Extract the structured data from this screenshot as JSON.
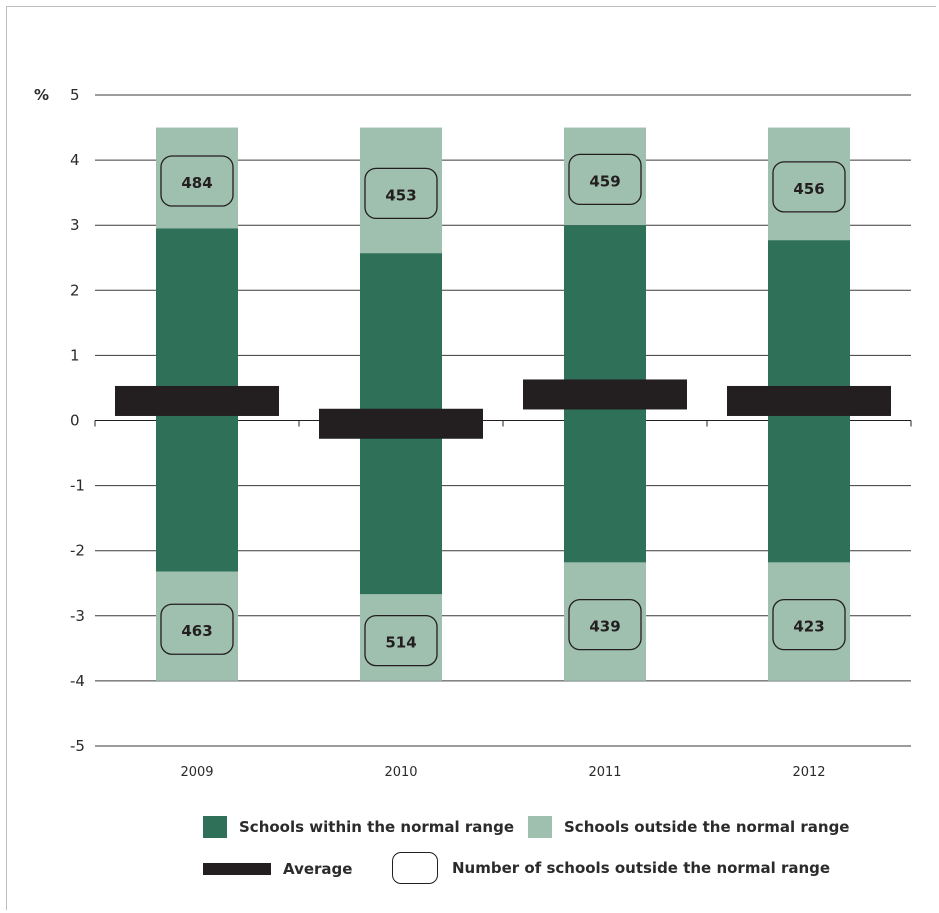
{
  "chart_data": {
    "type": "bar",
    "yunit": "%",
    "ylim": [
      -5,
      5
    ],
    "yticks": [
      5,
      4,
      3,
      2,
      1,
      0,
      -1,
      -2,
      -3,
      -4,
      -5
    ],
    "categories": [
      "2009",
      "2010",
      "2011",
      "2012"
    ],
    "outside_range_top": [
      4.5,
      4.5,
      4.5,
      4.5
    ],
    "within_range_top": [
      2.95,
      2.57,
      3.0,
      2.77
    ],
    "within_range_bottom": [
      -2.32,
      -2.67,
      -2.18,
      -2.18
    ],
    "outside_range_bottom": [
      -4.0,
      -4.0,
      -4.0,
      -4.0
    ],
    "average": [
      0.3,
      -0.05,
      0.4,
      0.3
    ],
    "count_outside_upper": [
      484,
      453,
      459,
      456
    ],
    "count_outside_lower": [
      463,
      514,
      439,
      423
    ],
    "grid": "horizontal",
    "legend_position": "bottom",
    "colors": {
      "within": "#2e7058",
      "outside": "#9fbfaf",
      "average": "#231f20"
    }
  },
  "legend": {
    "within": "Schools within the normal range",
    "outside": "Schools outside the normal range",
    "average": "Average",
    "count": "Number of schools outside the normal range"
  }
}
